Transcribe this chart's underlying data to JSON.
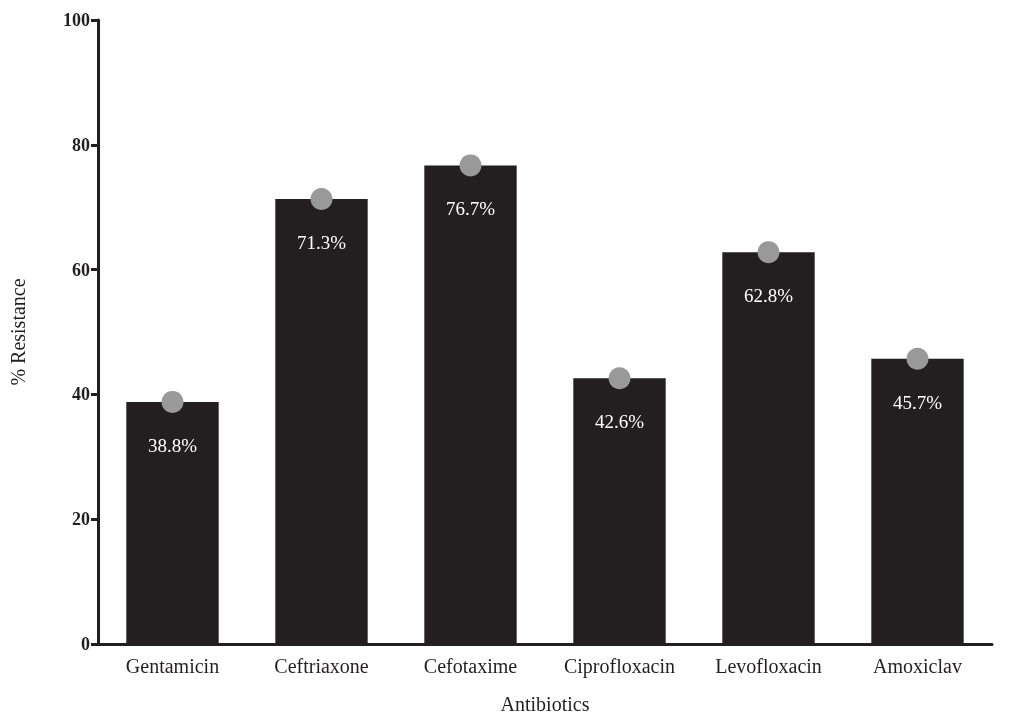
{
  "chart_data": {
    "type": "bar",
    "xlabel": "Antibiotics",
    "ylabel": "% Resistance",
    "categories": [
      "Gentamicin",
      "Ceftriaxone",
      "Cefotaxime",
      "Ciprofloxacin",
      "Levofloxacin",
      "Amoxiclav"
    ],
    "ylim": [
      0,
      100
    ],
    "yticks": [
      0,
      20,
      40,
      60,
      80,
      100
    ],
    "series": [
      {
        "color": "#231f20",
        "values": [
          38.8,
          71.3,
          76.7,
          42.6,
          62.8,
          45.7
        ],
        "value_labels": [
          "38.8%",
          "71.3%",
          "76.7%",
          "42.6%",
          "62.8%",
          "45.7%"
        ]
      },
      {
        "type": "scatter",
        "color": "#999999",
        "marker": "circle",
        "x": [
          "Gentamicin",
          "Ceftriaxone",
          "Cefotaxime",
          "Ciprofloxacin",
          "Levofloxacin",
          "Amoxiclav"
        ],
        "values": [
          38.8,
          71.3,
          76.7,
          42.6,
          62.8,
          45.7
        ]
      }
    ]
  }
}
